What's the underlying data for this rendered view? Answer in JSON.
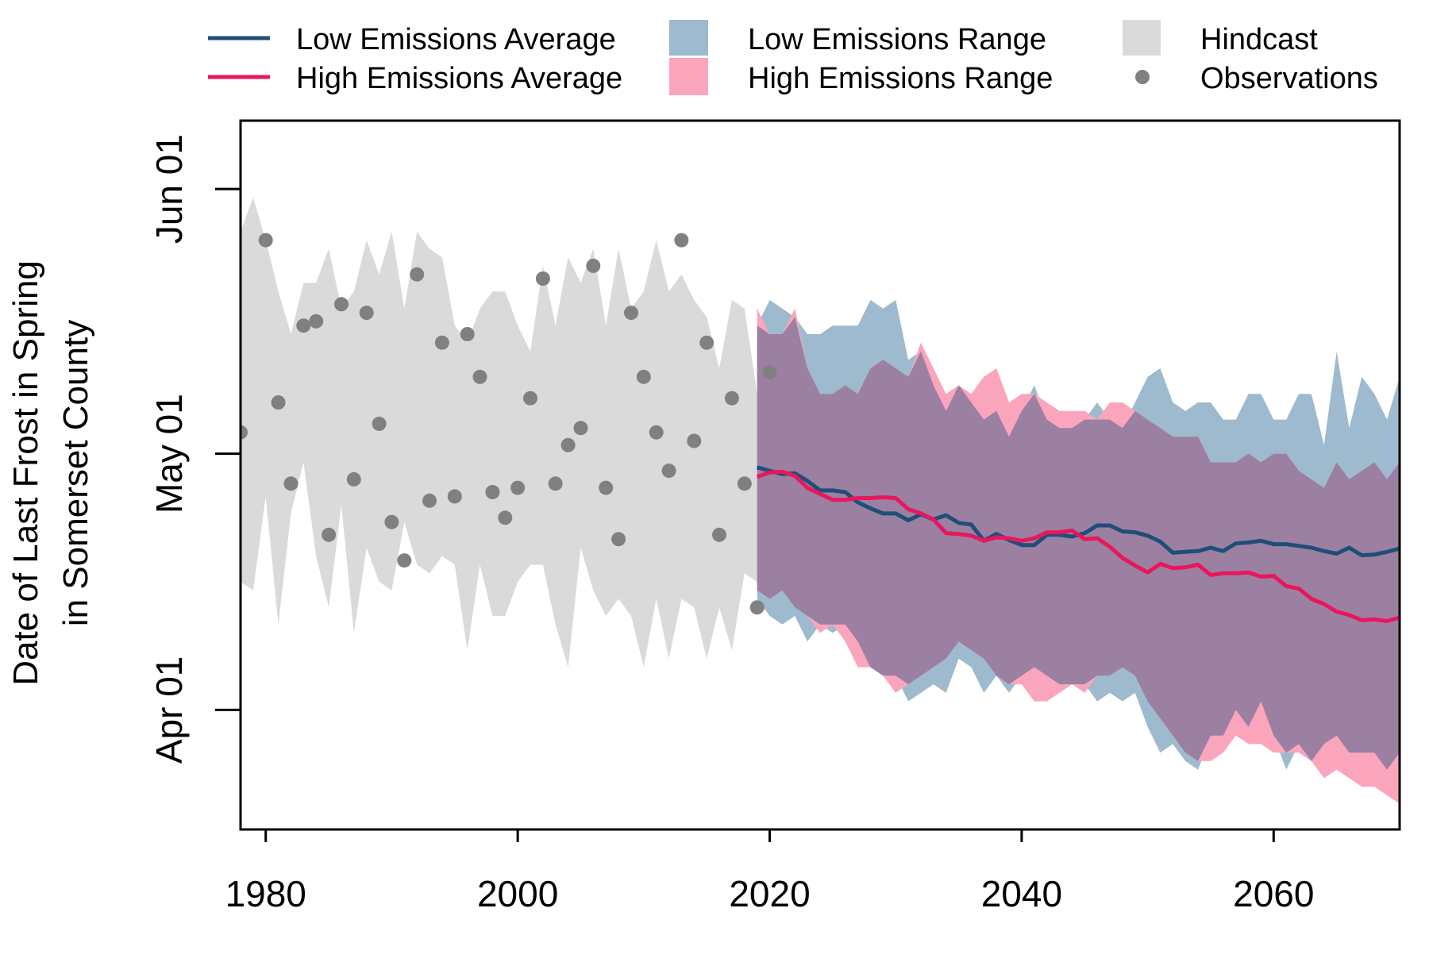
{
  "chart_data": {
    "type": "line",
    "title": "",
    "xlabel": "",
    "ylabel": [
      "Date of Last Frost in Spring",
      "in Somerset County"
    ],
    "xlim": [
      1978,
      2070
    ],
    "ylim_day_of_year": [
      77,
      160
    ],
    "x_ticks": [
      1980,
      2000,
      2020,
      2040,
      2060
    ],
    "y_ticks": [
      {
        "label": "Apr 01",
        "day_of_year": 91
      },
      {
        "label": "May 01",
        "day_of_year": 121
      },
      {
        "label": "Jun 01",
        "day_of_year": 152
      }
    ],
    "legend_position": "top",
    "legend": [
      {
        "label": "Low Emissions Average",
        "kind": "line",
        "color": "#1f4e79"
      },
      {
        "label": "High Emissions Average",
        "kind": "line",
        "color": "#e8175d"
      },
      {
        "label": "Low Emissions Range",
        "kind": "fill",
        "color": "#9ebace"
      },
      {
        "label": "High Emissions Range",
        "kind": "fill",
        "color": "#fba5bd"
      },
      {
        "label": "Hindcast",
        "kind": "fill",
        "color": "#dadada"
      },
      {
        "label": "Observations",
        "kind": "point",
        "color": "#808080"
      }
    ],
    "colors": {
      "low_line": "#1f4e79",
      "high_line": "#e8175d",
      "low_range": "#9ebace",
      "high_range": "#fba5bd",
      "overlap": "#9b80a2",
      "hindcast": "#dadada",
      "observations": "#808080"
    },
    "series": [
      {
        "name": "Observations",
        "kind": "points",
        "x": [
          1978,
          1980,
          1981,
          1982,
          1983,
          1984,
          1985,
          1986,
          1987,
          1988,
          1989,
          1990,
          1991,
          1992,
          1993,
          1994,
          1995,
          1996,
          1997,
          1998,
          1999,
          2000,
          2001,
          2002,
          2003,
          2004,
          2005,
          2006,
          2007,
          2008,
          2009,
          2010,
          2011,
          2012,
          2013,
          2014,
          2015,
          2016,
          2017,
          2018,
          2019,
          2020
        ],
        "y": [
          123.5,
          146,
          127,
          117.5,
          136,
          136.5,
          111.5,
          138.5,
          118,
          137.5,
          124.5,
          113,
          108.5,
          142,
          115.5,
          134,
          116,
          135,
          130,
          116.5,
          113.5,
          117,
          127.5,
          141.5,
          117.5,
          122,
          124,
          143,
          117,
          111,
          137.5,
          130,
          123.5,
          119,
          146,
          122.5,
          134,
          111.5,
          127.5,
          117.5,
          103,
          130.5
        ]
      },
      {
        "name": "Hindcast",
        "kind": "band",
        "x": [
          1978,
          1979,
          1980,
          1981,
          1982,
          1983,
          1984,
          1985,
          1986,
          1987,
          1988,
          1989,
          1990,
          1991,
          1992,
          1993,
          1994,
          1995,
          1996,
          1997,
          1998,
          1999,
          2000,
          2001,
          2002,
          2003,
          2004,
          2005,
          2006,
          2007,
          2008,
          2009,
          2010,
          2011,
          2012,
          2013,
          2014,
          2015,
          2016,
          2017,
          2018,
          2019
        ],
        "lower": [
          106,
          105,
          116,
          101,
          114,
          120,
          109,
          103,
          115,
          100,
          110,
          106,
          105,
          113,
          108,
          107,
          109,
          108,
          98,
          108,
          102,
          102,
          106,
          108,
          108,
          101,
          96,
          110,
          105,
          102,
          104,
          102,
          96,
          104,
          97,
          104,
          103,
          97,
          103,
          98,
          107,
          106
        ],
        "upper": [
          147,
          151,
          146,
          140,
          135,
          141,
          141,
          145,
          138,
          140,
          146,
          142,
          147,
          138,
          147,
          145,
          144,
          136,
          134,
          138,
          140,
          140,
          136,
          133,
          143,
          136,
          144,
          141,
          145,
          136,
          145,
          138,
          140,
          146,
          140,
          142,
          139,
          137,
          131,
          139,
          138,
          128
        ]
      },
      {
        "name": "Low Emissions Range",
        "kind": "band",
        "x": [
          2019,
          2020,
          2021,
          2022,
          2023,
          2024,
          2025,
          2026,
          2027,
          2028,
          2029,
          2030,
          2031,
          2032,
          2033,
          2034,
          2035,
          2036,
          2037,
          2038,
          2039,
          2040,
          2041,
          2042,
          2043,
          2044,
          2045,
          2046,
          2047,
          2048,
          2049,
          2050,
          2051,
          2052,
          2053,
          2054,
          2055,
          2056,
          2057,
          2058,
          2059,
          2060,
          2061,
          2062,
          2063,
          2064,
          2065,
          2066,
          2067,
          2068,
          2069,
          2070
        ],
        "lower": [
          104,
          102,
          101,
          102,
          99,
          101,
          100,
          101,
          99,
          96,
          95,
          95,
          92,
          93,
          94,
          93,
          97,
          96,
          93,
          95,
          93,
          95,
          96,
          95,
          94,
          94,
          94,
          92,
          93,
          92,
          93,
          89,
          86,
          87,
          85,
          84,
          88,
          88,
          91,
          89,
          92,
          88,
          84,
          87,
          85,
          87,
          88,
          86,
          86,
          86,
          84,
          86
        ],
        "upper": [
          136,
          139,
          138,
          137,
          135,
          135,
          136,
          136,
          136,
          139,
          138,
          139,
          132,
          133,
          129,
          126,
          129,
          127,
          125,
          126,
          123,
          126,
          129,
          125,
          124,
          124,
          125,
          127,
          125,
          124,
          127,
          130,
          131,
          127,
          126,
          127,
          127,
          125,
          125,
          128,
          128,
          125,
          125,
          128,
          128,
          122,
          133,
          124,
          130,
          128,
          125,
          130
        ]
      },
      {
        "name": "High Emissions Range",
        "kind": "band",
        "x": [
          2019,
          2020,
          2021,
          2022,
          2023,
          2024,
          2025,
          2026,
          2027,
          2028,
          2029,
          2030,
          2031,
          2032,
          2033,
          2034,
          2035,
          2036,
          2037,
          2038,
          2039,
          2040,
          2041,
          2042,
          2043,
          2044,
          2045,
          2046,
          2047,
          2048,
          2049,
          2050,
          2051,
          2052,
          2053,
          2054,
          2055,
          2056,
          2057,
          2058,
          2059,
          2060,
          2061,
          2062,
          2063,
          2064,
          2065,
          2066,
          2067,
          2068,
          2069,
          2070
        ],
        "lower": [
          105,
          104,
          105,
          103,
          102,
          100,
          101,
          99,
          96,
          96,
          95,
          93,
          94,
          95,
          96,
          97,
          99,
          98,
          97,
          95,
          94,
          94,
          92,
          92,
          93,
          94,
          93,
          95,
          95,
          96,
          95,
          92,
          90,
          88,
          86,
          85,
          85,
          86,
          88,
          87,
          87,
          86,
          86,
          86,
          85,
          83,
          84,
          83,
          82,
          82,
          81,
          80
        ],
        "upper": [
          138,
          135,
          135,
          138,
          131,
          128,
          128,
          129,
          128,
          131,
          132,
          131,
          130,
          134,
          131,
          128,
          129,
          128,
          130,
          131,
          127,
          128,
          128,
          127,
          126,
          126,
          126,
          125,
          127,
          127,
          126,
          125,
          124,
          123,
          123,
          123,
          120,
          120,
          120,
          121,
          120,
          121,
          121,
          119,
          118,
          117,
          120,
          118,
          119,
          120,
          118,
          120
        ]
      },
      {
        "name": "Low Emissions Average",
        "kind": "line",
        "x": [
          2019,
          2020,
          2021,
          2022,
          2023,
          2024,
          2025,
          2026,
          2027,
          2028,
          2029,
          2030,
          2031,
          2032,
          2033,
          2034,
          2035,
          2036,
          2037,
          2038,
          2039,
          2040,
          2041,
          2042,
          2043,
          2044,
          2045,
          2046,
          2047,
          2048,
          2049,
          2050,
          2051,
          2052,
          2053,
          2054,
          2055,
          2056,
          2057,
          2058,
          2059,
          2060,
          2061,
          2062,
          2063,
          2064,
          2065,
          2066,
          2067,
          2068,
          2069,
          2070
        ],
        "y": [
          119.4,
          119.0,
          118.6,
          118.7,
          117.8,
          116.7,
          116.7,
          116.5,
          115.3,
          114.6,
          114.0,
          114.0,
          113.2,
          113.9,
          113.3,
          113.8,
          112.9,
          112.7,
          110.8,
          111.6,
          110.9,
          110.3,
          110.3,
          111.5,
          111.5,
          111.3,
          111.7,
          112.6,
          112.6,
          111.9,
          111.8,
          111.4,
          110.7,
          109.4,
          109.5,
          109.6,
          110.0,
          109.6,
          110.5,
          110.6,
          110.8,
          110.4,
          110.4,
          110.2,
          110.0,
          109.6,
          109.3,
          110.0,
          109.1,
          109.2,
          109.5,
          109.9
        ]
      },
      {
        "name": "High Emissions Average",
        "kind": "line",
        "x": [
          2019,
          2020,
          2021,
          2022,
          2023,
          2024,
          2025,
          2026,
          2027,
          2028,
          2029,
          2030,
          2031,
          2032,
          2033,
          2034,
          2035,
          2036,
          2037,
          2038,
          2039,
          2040,
          2041,
          2042,
          2043,
          2044,
          2045,
          2046,
          2047,
          2048,
          2049,
          2050,
          2051,
          2052,
          2053,
          2054,
          2055,
          2056,
          2057,
          2058,
          2059,
          2060,
          2061,
          2062,
          2063,
          2064,
          2065,
          2066,
          2067,
          2068,
          2069,
          2070
        ],
        "y": [
          118.3,
          118.8,
          118.9,
          118.4,
          117.0,
          116.3,
          115.6,
          115.6,
          115.8,
          115.8,
          115.9,
          115.8,
          114.5,
          114.0,
          113.3,
          111.7,
          111.6,
          111.4,
          110.8,
          111.2,
          111.1,
          110.8,
          111.1,
          111.8,
          111.8,
          112.0,
          111.0,
          111.1,
          110.1,
          108.8,
          107.9,
          107.1,
          108.1,
          107.6,
          107.7,
          108.0,
          106.8,
          107.0,
          107.0,
          107.1,
          106.6,
          106.7,
          105.5,
          105.2,
          104.0,
          103.4,
          102.5,
          102.1,
          101.5,
          101.6,
          101.4,
          101.8
        ]
      }
    ]
  }
}
